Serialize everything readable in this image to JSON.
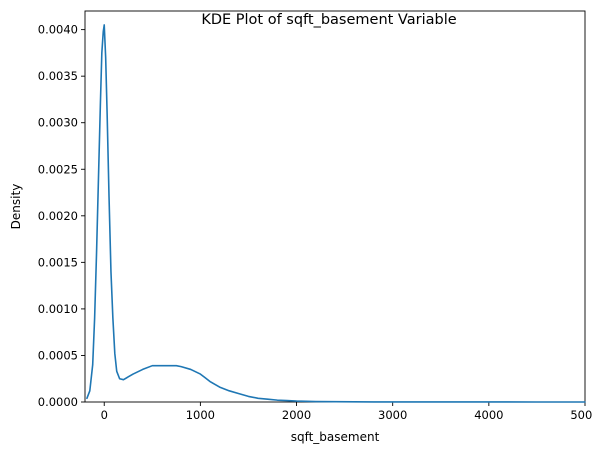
{
  "chart_data": {
    "type": "line",
    "title": "KDE Plot of sqft_basement Variable",
    "xlabel": "sqft_basement",
    "ylabel": "Density",
    "xlim": [
      -200,
      5000
    ],
    "ylim": [
      0,
      0.0042
    ],
    "xticks": [
      {
        "value": 0,
        "label": "0"
      },
      {
        "value": 1000,
        "label": "1000"
      },
      {
        "value": 2000,
        "label": "2000"
      },
      {
        "value": 3000,
        "label": "3000"
      },
      {
        "value": 4000,
        "label": "4000"
      },
      {
        "value": 5000,
        "label": "5000"
      }
    ],
    "yticks": [
      {
        "value": 0.0,
        "label": "0.0000"
      },
      {
        "value": 0.0005,
        "label": "0.0005"
      },
      {
        "value": 0.001,
        "label": "0.0010"
      },
      {
        "value": 0.0015,
        "label": "0.0015"
      },
      {
        "value": 0.002,
        "label": "0.0020"
      },
      {
        "value": 0.0025,
        "label": "0.0025"
      },
      {
        "value": 0.003,
        "label": "0.0030"
      },
      {
        "value": 0.0035,
        "label": "0.0035"
      },
      {
        "value": 0.004,
        "label": "0.0040"
      }
    ],
    "grid": false,
    "legend": "none",
    "series": [
      {
        "color": "#1f77b4",
        "x": [
          -180,
          -150,
          -120,
          -100,
          -80,
          -60,
          -40,
          -25,
          -10,
          0,
          15,
          30,
          50,
          70,
          90,
          110,
          130,
          160,
          200,
          250,
          300,
          400,
          500,
          600,
          700,
          750,
          800,
          900,
          1000,
          1050,
          1100,
          1150,
          1200,
          1300,
          1400,
          1500,
          1600,
          1700,
          1800,
          1900,
          2000,
          2200,
          2400,
          2600,
          2800,
          3000,
          3500,
          4000,
          4500,
          5000
        ],
        "y": [
          4e-05,
          0.00012,
          0.0004,
          0.0009,
          0.0016,
          0.0024,
          0.0032,
          0.00375,
          0.00398,
          0.00405,
          0.0037,
          0.0031,
          0.0022,
          0.0014,
          0.0009,
          0.00052,
          0.00033,
          0.00025,
          0.00024,
          0.00027,
          0.0003,
          0.00035,
          0.00039,
          0.00039,
          0.00039,
          0.00039,
          0.00038,
          0.00035,
          0.0003,
          0.00026,
          0.00022,
          0.00019,
          0.00016,
          0.00012,
          9e-05,
          6e-05,
          4e-05,
          3e-05,
          2e-05,
          1.5e-05,
          1e-05,
          5e-06,
          3e-06,
          2e-06,
          1e-06,
          1e-06,
          5e-07,
          3e-07,
          1e-07,
          0.0
        ]
      }
    ]
  }
}
